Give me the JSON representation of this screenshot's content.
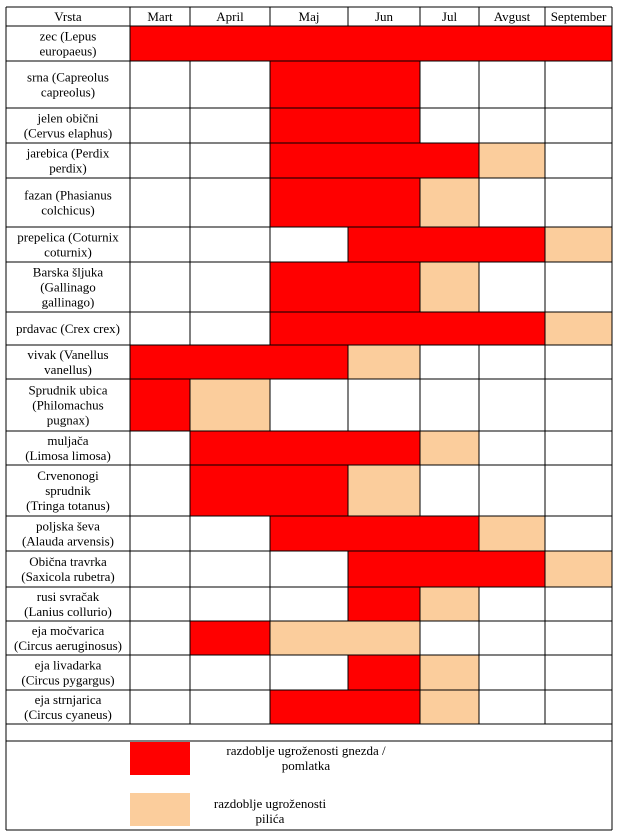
{
  "colors": {
    "nest": "#ff0000",
    "chick": "#fbcd9c",
    "line": "#000000",
    "background": "#ffffff"
  },
  "header": {
    "species": "Vrsta",
    "months": [
      "Mart",
      "April",
      "Maj",
      "Jun",
      "Jul",
      "Avgust",
      "September"
    ]
  },
  "rows": [
    {
      "name": [
        "zec (Lepus",
        "europaeus)"
      ],
      "periods": [
        "nest",
        "nest",
        "nest",
        "nest",
        "nest",
        "nest",
        "nest"
      ]
    },
    {
      "name": [
        "srna (Capreolus",
        "capreolus)"
      ],
      "periods": [
        "none",
        "none",
        "nest",
        "nest",
        "none",
        "none",
        "none"
      ]
    },
    {
      "name": [
        "jelen obični",
        "(Cervus elaphus)"
      ],
      "periods": [
        "none",
        "none",
        "nest",
        "nest",
        "none",
        "none",
        "none"
      ]
    },
    {
      "name": [
        "jarebica (Perdix",
        "perdix)"
      ],
      "periods": [
        "none",
        "none",
        "nest",
        "nest",
        "nest",
        "chick",
        "none"
      ]
    },
    {
      "name": [
        "fazan (Phasianus",
        "colchicus)"
      ],
      "periods": [
        "none",
        "none",
        "nest",
        "nest",
        "chick",
        "none",
        "none"
      ]
    },
    {
      "name": [
        "prepelica (Coturnix",
        "coturnix)"
      ],
      "periods": [
        "none",
        "none",
        "none",
        "nest",
        "nest",
        "nest",
        "chick"
      ]
    },
    {
      "name": [
        "Barska šljuka",
        "(Gallinago",
        "gallinago)"
      ],
      "periods": [
        "none",
        "none",
        "nest",
        "nest",
        "chick",
        "none",
        "none"
      ]
    },
    {
      "name": [
        "prdavac (Crex crex)"
      ],
      "periods": [
        "none",
        "none",
        "nest",
        "nest",
        "nest",
        "nest",
        "chick"
      ]
    },
    {
      "name": [
        "vivak (Vanellus",
        "vanellus)"
      ],
      "periods": [
        "nest",
        "nest",
        "nest",
        "chick",
        "none",
        "none",
        "none"
      ]
    },
    {
      "name": [
        "Sprudnik ubica",
        "(Philomachus",
        "pugnax)"
      ],
      "periods": [
        "nest",
        "chick",
        "none",
        "none",
        "none",
        "none",
        "none"
      ]
    },
    {
      "name": [
        "muljača",
        "(Limosa limosa)"
      ],
      "periods": [
        "none",
        "nest",
        "nest",
        "nest",
        "chick",
        "none",
        "none"
      ]
    },
    {
      "name": [
        "Crvenonogi",
        "sprudnik",
        "(Tringa totanus)"
      ],
      "periods": [
        "none",
        "nest",
        "nest",
        "chick",
        "none",
        "none",
        "none"
      ]
    },
    {
      "name": [
        "poljska ševa",
        "(Alauda arvensis)"
      ],
      "periods": [
        "none",
        "none",
        "nest",
        "nest",
        "nest",
        "chick",
        "none"
      ]
    },
    {
      "name": [
        "Obična travrka",
        "(Saxicola rubetra)"
      ],
      "periods": [
        "none",
        "none",
        "none",
        "nest",
        "nest",
        "nest",
        "chick"
      ]
    },
    {
      "name": [
        "rusi svračak",
        "(Lanius collurio)"
      ],
      "periods": [
        "none",
        "none",
        "none",
        "nest",
        "chick",
        "none",
        "none"
      ]
    },
    {
      "name": [
        "eja močvarica",
        "(Circus aeruginosus)"
      ],
      "periods": [
        "none",
        "nest",
        "chick",
        "chick",
        "none",
        "none",
        "none"
      ]
    },
    {
      "name": [
        "eja livadarka",
        "(Circus pygargus)"
      ],
      "periods": [
        "none",
        "none",
        "none",
        "nest",
        "chick",
        "none",
        "none"
      ]
    },
    {
      "name": [
        "eja strnjarica",
        "(Circus cyaneus)"
      ],
      "periods": [
        "none",
        "none",
        "nest",
        "nest",
        "chick",
        "none",
        "none"
      ]
    }
  ],
  "legend": {
    "nest_label": [
      "razdoblje ugroženosti gnezda /",
      "pomlatka"
    ],
    "chick_label": [
      "razdoblje ugroženosti",
      "pilića"
    ]
  }
}
